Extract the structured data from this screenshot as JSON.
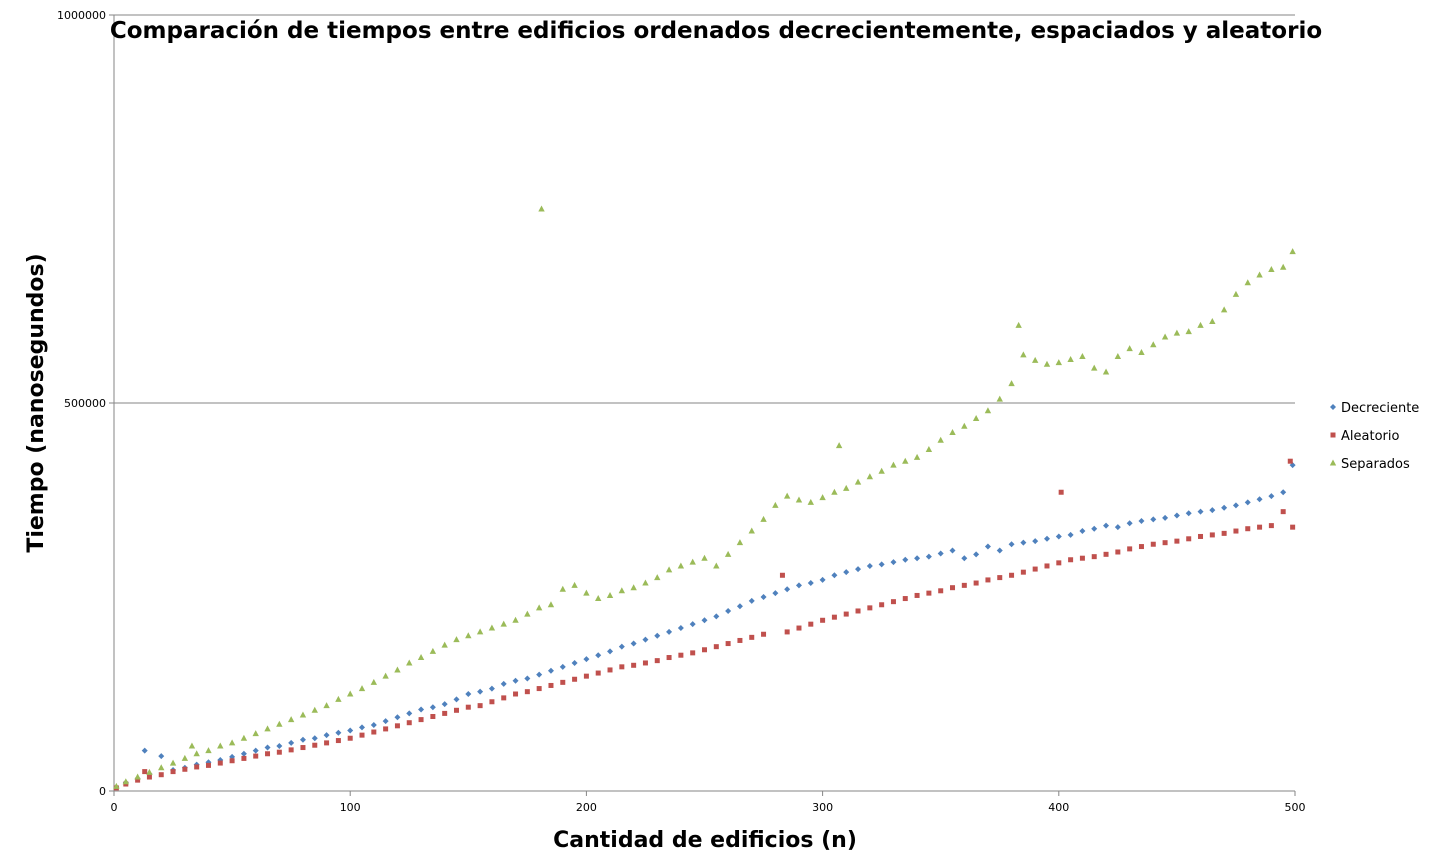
{
  "chart_data": {
    "type": "scatter",
    "title": "Comparación de tiempos entre edificios ordenados decrecientemente, espaciados y aleatorio",
    "xlabel": "Cantidad de edificios (n)",
    "ylabel": "Tiempo (nanosegundos)",
    "xlim": [
      0,
      500
    ],
    "ylim": [
      0,
      1000000
    ],
    "x_ticks": [
      "0",
      "100",
      "200",
      "300",
      "400",
      "500"
    ],
    "y_ticks": [
      "0",
      "500000",
      "1000000"
    ],
    "grid": "horizontal major gridlines",
    "legend_position": "right",
    "series": [
      {
        "name": "Decreciente",
        "color": "#4f81bd",
        "marker": "diamond",
        "x": [
          1,
          5,
          10,
          13,
          15,
          20,
          25,
          30,
          35,
          40,
          45,
          50,
          55,
          60,
          65,
          70,
          75,
          80,
          85,
          90,
          95,
          100,
          105,
          110,
          115,
          120,
          125,
          130,
          135,
          140,
          145,
          150,
          155,
          160,
          165,
          170,
          175,
          180,
          185,
          190,
          195,
          200,
          205,
          210,
          215,
          220,
          225,
          230,
          235,
          240,
          245,
          250,
          255,
          260,
          265,
          270,
          275,
          280,
          285,
          290,
          295,
          300,
          305,
          310,
          315,
          320,
          325,
          330,
          335,
          340,
          345,
          350,
          355,
          360,
          365,
          370,
          375,
          380,
          385,
          390,
          395,
          400,
          405,
          410,
          415,
          420,
          425,
          430,
          435,
          440,
          445,
          450,
          455,
          460,
          465,
          470,
          475,
          480,
          485,
          490,
          495,
          499
        ],
        "y": [
          5000,
          11000,
          16000,
          52000,
          22000,
          45000,
          27000,
          30000,
          34000,
          37000,
          40000,
          44000,
          48000,
          52000,
          56000,
          58000,
          62000,
          66000,
          68000,
          72000,
          75000,
          78000,
          82000,
          85000,
          90000,
          95000,
          100000,
          105000,
          108000,
          112000,
          118000,
          125000,
          128000,
          132000,
          138000,
          142000,
          145000,
          150000,
          155000,
          160000,
          165000,
          170000,
          175000,
          180000,
          186000,
          190000,
          195000,
          200000,
          205000,
          210000,
          215000,
          220000,
          225000,
          232000,
          238000,
          245000,
          250000,
          255000,
          260000,
          265000,
          268000,
          272000,
          278000,
          282000,
          286000,
          290000,
          292000,
          295000,
          298000,
          300000,
          302000,
          306000,
          310000,
          300000,
          305000,
          315000,
          310000,
          318000,
          320000,
          322000,
          325000,
          328000,
          330000,
          335000,
          338000,
          342000,
          340000,
          345000,
          348000,
          350000,
          352000,
          355000,
          358000,
          360000,
          362000,
          365000,
          368000,
          372000,
          376000,
          380000,
          385000,
          420000
        ]
      },
      {
        "name": "Aleatorio",
        "color": "#c0504d",
        "marker": "square",
        "x": [
          1,
          5,
          10,
          13,
          15,
          20,
          25,
          30,
          35,
          40,
          45,
          50,
          55,
          60,
          65,
          70,
          75,
          80,
          85,
          90,
          95,
          100,
          105,
          110,
          115,
          120,
          125,
          130,
          135,
          140,
          145,
          150,
          155,
          160,
          165,
          170,
          175,
          180,
          185,
          190,
          195,
          200,
          205,
          210,
          215,
          220,
          225,
          230,
          235,
          240,
          245,
          250,
          255,
          260,
          265,
          270,
          275,
          283,
          285,
          290,
          295,
          300,
          305,
          310,
          315,
          320,
          325,
          330,
          335,
          340,
          345,
          350,
          355,
          360,
          365,
          370,
          375,
          380,
          385,
          390,
          395,
          400,
          401,
          405,
          410,
          415,
          420,
          425,
          430,
          435,
          440,
          445,
          450,
          455,
          460,
          465,
          470,
          475,
          480,
          485,
          490,
          495,
          498,
          499
        ],
        "y": [
          4000,
          9000,
          14000,
          25000,
          18000,
          21000,
          25000,
          28000,
          31000,
          33000,
          36000,
          39000,
          42000,
          45000,
          48000,
          50000,
          53000,
          56000,
          59000,
          62000,
          65000,
          68000,
          72000,
          76000,
          80000,
          84000,
          88000,
          92000,
          96000,
          100000,
          104000,
          108000,
          110000,
          115000,
          120000,
          125000,
          128000,
          132000,
          136000,
          140000,
          144000,
          148000,
          152000,
          156000,
          160000,
          162000,
          165000,
          168000,
          172000,
          175000,
          178000,
          182000,
          186000,
          190000,
          194000,
          198000,
          202000,
          278000,
          205000,
          210000,
          215000,
          220000,
          224000,
          228000,
          232000,
          236000,
          240000,
          244000,
          248000,
          252000,
          255000,
          258000,
          262000,
          265000,
          268000,
          272000,
          275000,
          278000,
          282000,
          286000,
          290000,
          294000,
          385000,
          298000,
          300000,
          302000,
          305000,
          308000,
          312000,
          315000,
          318000,
          320000,
          322000,
          325000,
          328000,
          330000,
          332000,
          335000,
          338000,
          340000,
          342000,
          360000,
          425000,
          340000
        ]
      },
      {
        "name": "Separados",
        "color": "#9bbb59",
        "marker": "triangle",
        "x": [
          1,
          5,
          10,
          15,
          20,
          25,
          30,
          33,
          35,
          40,
          45,
          50,
          55,
          60,
          65,
          70,
          75,
          80,
          85,
          90,
          95,
          100,
          105,
          110,
          115,
          120,
          125,
          130,
          135,
          140,
          145,
          150,
          155,
          160,
          165,
          170,
          175,
          180,
          181,
          185,
          190,
          195,
          200,
          205,
          210,
          215,
          220,
          225,
          230,
          235,
          240,
          245,
          250,
          255,
          260,
          265,
          270,
          275,
          280,
          285,
          290,
          295,
          300,
          305,
          307,
          310,
          315,
          320,
          325,
          330,
          335,
          340,
          345,
          350,
          355,
          360,
          365,
          370,
          375,
          380,
          383,
          385,
          390,
          395,
          400,
          405,
          410,
          415,
          420,
          425,
          430,
          435,
          440,
          445,
          450,
          455,
          460,
          465,
          470,
          475,
          480,
          485,
          490,
          495,
          499
        ],
        "y": [
          6000,
          12000,
          18000,
          24000,
          30000,
          36000,
          42000,
          58000,
          48000,
          52000,
          58000,
          62000,
          68000,
          74000,
          80000,
          86000,
          92000,
          98000,
          104000,
          110000,
          118000,
          125000,
          132000,
          140000,
          148000,
          156000,
          165000,
          172000,
          180000,
          188000,
          195000,
          200000,
          205000,
          210000,
          215000,
          220000,
          228000,
          236000,
          750000,
          240000,
          260000,
          265000,
          255000,
          248000,
          252000,
          258000,
          262000,
          268000,
          275000,
          285000,
          290000,
          295000,
          300000,
          290000,
          305000,
          320000,
          335000,
          350000,
          368000,
          380000,
          375000,
          372000,
          378000,
          385000,
          445000,
          390000,
          398000,
          405000,
          412000,
          420000,
          425000,
          430000,
          440000,
          452000,
          462000,
          470000,
          480000,
          490000,
          505000,
          525000,
          600000,
          562000,
          555000,
          550000,
          552000,
          556000,
          560000,
          545000,
          540000,
          560000,
          570000,
          565000,
          575000,
          585000,
          590000,
          592000,
          600000,
          605000,
          620000,
          640000,
          655000,
          665000,
          672000,
          675000,
          695000
        ]
      }
    ]
  }
}
